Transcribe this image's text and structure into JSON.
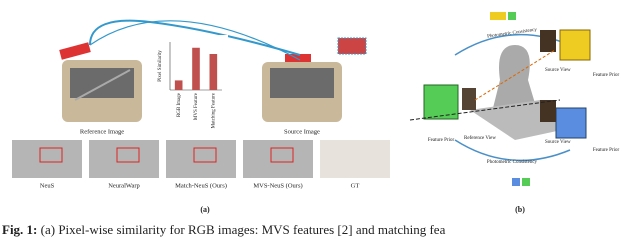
{
  "panel_a": {
    "reference_label": "Reference Image",
    "source_label": "Source Image",
    "methods": [
      "NeuS",
      "NeuralWarp",
      "Match-NeuS (Ours)",
      "MVS-NeuS (Ours)",
      "GT"
    ],
    "tag": "(a)",
    "inset_chart": {
      "type": "bar",
      "y_label": "Pixel Similarity",
      "categories": [
        "RGB Image",
        "MVS Feature",
        "Matching Feature"
      ],
      "values": [
        0.2,
        0.88,
        0.75
      ],
      "color": "#c0504d",
      "ylim": [
        0,
        1
      ]
    }
  },
  "panel_b": {
    "arc_labels": [
      "Photometric Consistency",
      "Photometric Consistency"
    ],
    "source_views": [
      "Source View",
      "Source View"
    ],
    "feature_priors": [
      "Feature Prior",
      "Feature Prior",
      "Feature Prior"
    ],
    "reference_view": "Reference View",
    "tag": "(b)"
  },
  "caption": {
    "prefix": "Fig. 1:",
    "text": "(a) Pixel-wise similarity for RGB images: MVS features [2] and matching fea"
  }
}
